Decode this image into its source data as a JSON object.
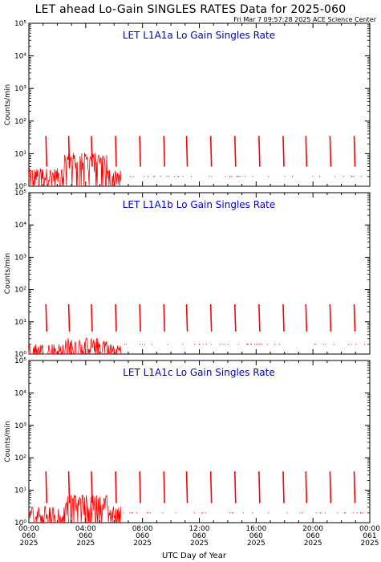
{
  "page": {
    "title": "LET ahead Lo-Gain SINGLES RATES Data for 2025-060",
    "timestamp": "Fri Mar  7 09:57:28 2025 ACE Science Center",
    "ylabel": "Counts/min",
    "xlabel": "UTC Day of Year"
  },
  "colors": {
    "series": "#ff0000",
    "panel_title": "#0000cc",
    "axis": "#000000"
  },
  "chart_data": [
    {
      "type": "line",
      "title": "LET L1A1a Lo Gain Singles Rate",
      "ylabel": "Counts/min",
      "xlabel": "",
      "yscale": "log",
      "ylim": [
        1,
        100000
      ],
      "xlim": [
        0,
        24
      ],
      "yticks": [
        "10⁰",
        "10¹",
        "10²",
        "10³",
        "10⁴",
        "10⁵"
      ],
      "spikes_hours": [
        1.2,
        2.8,
        4.4,
        6.1,
        7.8,
        9.5,
        11.1,
        12.8,
        14.5,
        16.2,
        17.9,
        19.5,
        21.2,
        22.9
      ],
      "spike_peak": 35,
      "spike_floor": 4,
      "background": {
        "early_hours": [
          0,
          6.5
        ],
        "early_level": 2,
        "elevated_hours": [
          2.5,
          5.5
        ],
        "elevated_level": 6,
        "late_level": 1
      }
    },
    {
      "type": "line",
      "title": "LET L1A1b Lo Gain Singles Rate",
      "ylabel": "Counts/min",
      "xlabel": "",
      "yscale": "log",
      "ylim": [
        1,
        100000
      ],
      "xlim": [
        0,
        24
      ],
      "yticks": [
        "10⁰",
        "10¹",
        "10²",
        "10³",
        "10⁴",
        "10⁵"
      ],
      "spikes_hours": [
        1.2,
        2.8,
        4.4,
        6.1,
        7.8,
        9.5,
        11.1,
        12.8,
        14.5,
        16.2,
        17.9,
        19.5,
        21.2,
        22.9
      ],
      "spike_peak": 35,
      "spike_floor": 5,
      "background": {
        "early_hours": [
          0,
          6.5
        ],
        "early_level": 1.2,
        "elevated_hours": [
          2.5,
          5.5
        ],
        "elevated_level": 1.8,
        "late_level": 1
      }
    },
    {
      "type": "line",
      "title": "LET L1A1c Lo Gain Singles Rate",
      "ylabel": "Counts/min",
      "xlabel": "UTC Day of Year",
      "yscale": "log",
      "ylim": [
        1,
        100000
      ],
      "xlim": [
        0,
        24
      ],
      "yticks": [
        "10⁰",
        "10¹",
        "10²",
        "10³",
        "10⁴",
        "10⁵"
      ],
      "xticks": [
        {
          "time": "00:00",
          "doy": "060",
          "year": "2025"
        },
        {
          "time": "04:00",
          "doy": "060",
          "year": "2025"
        },
        {
          "time": "08:00",
          "doy": "060",
          "year": "2025"
        },
        {
          "time": "12:00",
          "doy": "060",
          "year": "2025"
        },
        {
          "time": "16:00",
          "doy": "060",
          "year": "2025"
        },
        {
          "time": "20:00",
          "doy": "060",
          "year": "2025"
        },
        {
          "time": "00:00",
          "doy": "061",
          "year": "2025"
        }
      ],
      "spikes_hours": [
        1.2,
        2.8,
        4.4,
        6.1,
        7.8,
        9.5,
        11.1,
        12.8,
        14.5,
        16.2,
        17.9,
        19.5,
        21.2,
        22.9
      ],
      "spike_peak": 38,
      "spike_floor": 4,
      "background": {
        "early_hours": [
          0,
          6.5
        ],
        "early_level": 1.8,
        "elevated_hours": [
          2.5,
          5.5
        ],
        "elevated_level": 4,
        "late_level": 1
      }
    }
  ]
}
